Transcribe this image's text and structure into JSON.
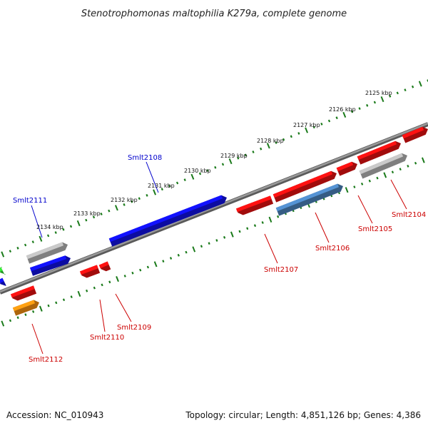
{
  "title": "Stenotrophomonas maltophilia K279a, complete genome",
  "footer": {
    "accession": "Accession: NC_010943",
    "summary": "Topology: circular; Length: 4,851,126 bp; Genes: 4,386"
  },
  "scale_labels": [
    "2125 kbp",
    "2126 kbp",
    "2127 kbp",
    "2128 kbp",
    "2129 kbp",
    "2130 kbp",
    "2131 kbp",
    "2132 kbp",
    "2133 kbp",
    "2134 kbp"
  ],
  "gene_labels": {
    "smlt2104": "Smlt2104",
    "smlt2105": "Smlt2105",
    "smlt2106": "Smlt2106",
    "smlt2107": "Smlt2107",
    "smlt2108": "Smlt2108",
    "smlt2109": "Smlt2109",
    "smlt2110": "Smlt2110",
    "smlt2111": "Smlt2111",
    "smlt2112": "Smlt2112"
  },
  "colors": {
    "red_gene": "#e01010",
    "blue_gene": "#1010e0",
    "gray_gene": "#b0b0b0",
    "steel_gene": "#4a80b8",
    "orange_gene": "#f08c10",
    "green_gene": "#30d030",
    "backbone": "#808080",
    "ticks": "#1a7a1a",
    "red_label": "#cc0000",
    "blue_label": "#0000cc"
  }
}
